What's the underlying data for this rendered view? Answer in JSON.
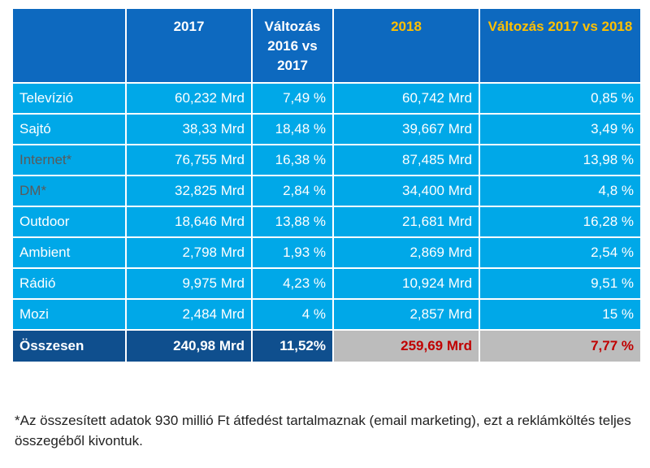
{
  "header": {
    "blank": "",
    "col_2017": "2017",
    "col_change_16_17": "Változás 2016 vs 2017",
    "col_2018": "2018",
    "col_change_17_18": "Változás 2017 vs 2018"
  },
  "rows": [
    {
      "label": "Televízió",
      "v2017": "60,232 Mrd",
      "chg1617": "7,49 %",
      "v2018": "60,742 Mrd",
      "chg1718": "0,85 %"
    },
    {
      "label": "Sajtó",
      "v2017": "38,33 Mrd",
      "chg1617": "18,48 %",
      "v2018": "39,667 Mrd",
      "chg1718": "3,49 %"
    },
    {
      "label": "Internet*",
      "v2017": "76,755 Mrd",
      "chg1617": "16,38 %",
      "v2018": "87,485 Mrd",
      "chg1718": "13,98 %"
    },
    {
      "label": "DM*",
      "v2017": "32,825 Mrd",
      "chg1617": "2,84 %",
      "v2018": "34,400 Mrd",
      "chg1718": "4,8 %"
    },
    {
      "label": "Outdoor",
      "v2017": "18,646 Mrd",
      "chg1617": "13,88 %",
      "v2018": "21,681 Mrd",
      "chg1718": "16,28 %"
    },
    {
      "label": "Ambient",
      "v2017": "2,798 Mrd",
      "chg1617": "1,93 %",
      "v2018": "2,869 Mrd",
      "chg1718": "2,54 %"
    },
    {
      "label": "Rádió",
      "v2017": "9,975 Mrd",
      "chg1617": "4,23 %",
      "v2018": "10,924 Mrd",
      "chg1718": "9,51 %"
    },
    {
      "label": "Mozi",
      "v2017": "2,484 Mrd",
      "chg1617": "4 %",
      "v2018": "2,857 Mrd",
      "chg1718": "15 %"
    }
  ],
  "total": {
    "label": "Összesen",
    "v2017": "240,98 Mrd",
    "chg1617": "11,52%",
    "v2018": "259,69 Mrd",
    "chg1718": "7,77 %"
  },
  "footnote": "*Az összesített adatok 930 millió Ft átfedést tartalmaznak (email marketing), ezt a reklámköltés teljes összegéből kivontuk.",
  "colors": {
    "header_bg": "#0d69bf",
    "row_bg": "#00a8e8",
    "total_dark_bg": "#0f4f8e",
    "total_grey_bg": "#bcbcbc",
    "gold_text": "#ffc000",
    "red_text": "#c00000"
  }
}
